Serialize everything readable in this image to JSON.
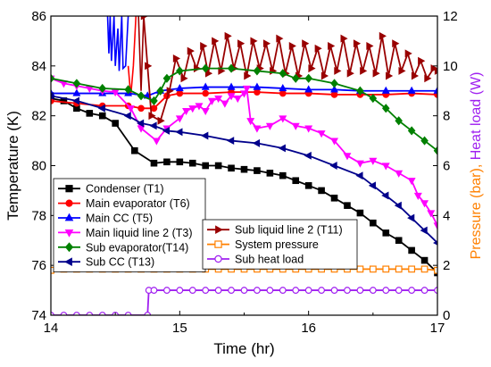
{
  "chart_data": {
    "type": "line",
    "xlabel": "Time (hr)",
    "ylabel_left": "Temperature (K)",
    "ylabel_right_part1": "Pressure (bar),",
    "ylabel_right_part2": "Heat load (W)",
    "xlim": [
      14,
      17
    ],
    "ylim_left": [
      74,
      86
    ],
    "ylim_right": [
      0,
      12
    ],
    "x_ticks": [
      14,
      15,
      16,
      17
    ],
    "x_tick_labels": [
      "14",
      "15",
      "16",
      "17"
    ],
    "y_left_ticks": [
      74,
      76,
      78,
      80,
      82,
      84,
      86
    ],
    "y_left_tick_labels": [
      "74",
      "76",
      "78",
      "80",
      "82",
      "84",
      "86"
    ],
    "y_right_ticks": [
      0,
      2,
      4,
      6,
      8,
      10,
      12
    ],
    "y_right_tick_labels": [
      "0",
      "2",
      "4",
      "6",
      "8",
      "10",
      "12"
    ],
    "grid": false,
    "legend_placement": "bottom-center",
    "colors": {
      "right_axis_pressure": "#ff8000",
      "right_axis_heat": "#a020f0"
    },
    "series": [
      {
        "key": "t1",
        "name": "Condenser (T1)",
        "axis": "left",
        "color": "#000000",
        "marker": "square",
        "filled": true,
        "x": [
          14.0,
          14.1,
          14.2,
          14.3,
          14.4,
          14.5,
          14.65,
          14.8,
          14.9,
          15.0,
          15.1,
          15.2,
          15.3,
          15.4,
          15.5,
          15.6,
          15.7,
          15.8,
          15.9,
          16.0,
          16.1,
          16.2,
          16.3,
          16.4,
          16.5,
          16.6,
          16.7,
          16.8,
          16.9,
          17.0
        ],
        "y": [
          82.7,
          82.6,
          82.3,
          82.1,
          82.0,
          81.7,
          80.6,
          80.1,
          80.15,
          80.15,
          80.1,
          80.0,
          80.0,
          79.9,
          79.85,
          79.8,
          79.7,
          79.6,
          79.4,
          79.2,
          79.0,
          78.7,
          78.4,
          78.1,
          77.7,
          77.3,
          77.0,
          76.6,
          76.2,
          75.7
        ]
      },
      {
        "key": "t6",
        "name": "Main evaporator (T6)",
        "axis": "left",
        "color": "#ff0000",
        "marker": "circle",
        "filled": true,
        "x": [
          14.0,
          14.2,
          14.4,
          14.6,
          14.7,
          14.8,
          14.9,
          15.0,
          15.2,
          15.4,
          15.6,
          15.8,
          16.0,
          16.2,
          16.4,
          16.6,
          16.8,
          17.0
        ],
        "y": [
          82.6,
          82.5,
          82.4,
          82.4,
          82.3,
          82.3,
          82.8,
          82.9,
          82.9,
          82.95,
          82.95,
          82.9,
          82.9,
          82.85,
          82.85,
          82.85,
          82.9,
          82.85
        ]
      },
      {
        "key": "t5",
        "name": "Main CC (T5)",
        "axis": "left",
        "color": "#0000ff",
        "marker": "triangle-up",
        "filled": true,
        "x": [
          14.0,
          14.2,
          14.4,
          14.6,
          14.75,
          14.85,
          15.0,
          15.2,
          15.4,
          15.6,
          15.8,
          16.0,
          16.2,
          16.4,
          16.6,
          16.8,
          17.0
        ],
        "y": [
          82.9,
          82.9,
          82.9,
          82.9,
          82.8,
          83.0,
          83.1,
          83.15,
          83.15,
          83.15,
          83.1,
          83.05,
          83.05,
          83.0,
          83.0,
          83.0,
          83.0
        ]
      },
      {
        "key": "t3",
        "name": "Main liquid line 2 (T3)",
        "axis": "left",
        "color": "#ff00ff",
        "marker": "triangle-down",
        "filled": true,
        "x": [
          14.0,
          14.1,
          14.2,
          14.3,
          14.4,
          14.5,
          14.62,
          14.7,
          14.82,
          14.9,
          15.0,
          15.05,
          15.1,
          15.15,
          15.2,
          15.25,
          15.3,
          15.35,
          15.4,
          15.45,
          15.5,
          15.52,
          15.55,
          15.6,
          15.7,
          15.8,
          15.9,
          16.0,
          16.1,
          16.2,
          16.3,
          16.4,
          16.5,
          16.6,
          16.7,
          16.8,
          16.85,
          16.9,
          16.95,
          17.0
        ],
        "y": [
          83.5,
          83.3,
          83.2,
          83.1,
          83.0,
          82.95,
          82.3,
          81.5,
          81.0,
          81.5,
          81.9,
          82.2,
          82.3,
          82.4,
          82.2,
          82.6,
          82.7,
          82.5,
          82.8,
          82.7,
          82.9,
          83.1,
          81.8,
          81.5,
          81.6,
          81.9,
          81.6,
          81.5,
          81.3,
          81.0,
          80.4,
          80.1,
          80.2,
          80.0,
          79.7,
          79.4,
          78.8,
          78.5,
          78.1,
          77.6
        ]
      },
      {
        "key": "t11",
        "name": "Sub liquid line 2 (T11)",
        "axis": "left",
        "color": "#990000",
        "marker": "triangle-right",
        "filled": true,
        "x": [
          14.72,
          14.75,
          14.78,
          14.85,
          14.92,
          14.97,
          15.03,
          15.08,
          15.13,
          15.18,
          15.22,
          15.27,
          15.32,
          15.37,
          15.42,
          15.47,
          15.52,
          15.57,
          15.62,
          15.67,
          15.72,
          15.77,
          15.82,
          15.87,
          15.92,
          15.97,
          16.02,
          16.07,
          16.12,
          16.17,
          16.22,
          16.27,
          16.32,
          16.37,
          16.42,
          16.47,
          16.52,
          16.57,
          16.62,
          16.67,
          16.72,
          16.77,
          16.82,
          16.87,
          16.92,
          16.97,
          17.0
        ],
        "y": [
          86.0,
          84.0,
          82.0,
          81.8,
          83.0,
          84.3,
          83.5,
          84.6,
          83.9,
          84.8,
          83.7,
          85.0,
          83.8,
          85.2,
          83.9,
          84.9,
          83.6,
          85.0,
          83.9,
          84.9,
          83.8,
          85.1,
          83.7,
          84.8,
          83.6,
          84.9,
          83.9,
          84.7,
          83.6,
          84.8,
          83.8,
          85.1,
          83.7,
          84.9,
          83.8,
          84.8,
          83.7,
          85.2,
          83.6,
          84.9,
          83.8,
          84.5,
          83.6,
          84.2,
          83.5,
          83.9,
          83.8
        ]
      },
      {
        "key": "t14",
        "name": "Sub evaporator(T14)",
        "axis": "left",
        "color": "#008000",
        "marker": "diamond",
        "filled": true,
        "x": [
          14.0,
          14.2,
          14.4,
          14.6,
          14.7,
          14.8,
          14.85,
          14.9,
          15.0,
          15.2,
          15.4,
          15.6,
          15.8,
          15.9,
          16.0,
          16.2,
          16.4,
          16.5,
          16.6,
          16.7,
          16.8,
          16.9,
          17.0
        ],
        "y": [
          83.5,
          83.3,
          83.1,
          83.05,
          82.8,
          82.6,
          83.0,
          83.5,
          83.8,
          83.9,
          83.9,
          83.8,
          83.7,
          83.5,
          83.5,
          83.3,
          83.0,
          82.7,
          82.3,
          81.8,
          81.4,
          81.0,
          80.6
        ]
      },
      {
        "key": "t13",
        "name": "Sub CC (T13)",
        "axis": "left",
        "color": "#00008b",
        "marker": "triangle-left",
        "filled": true,
        "x": [
          14.0,
          14.2,
          14.4,
          14.6,
          14.7,
          14.8,
          14.9,
          15.0,
          15.2,
          15.4,
          15.6,
          15.8,
          16.0,
          16.2,
          16.4,
          16.5,
          16.6,
          16.7,
          16.8,
          16.9,
          17.0
        ],
        "y": [
          82.8,
          82.6,
          82.3,
          82.0,
          81.7,
          81.6,
          81.4,
          81.35,
          81.2,
          81.0,
          80.9,
          80.7,
          80.4,
          80.0,
          79.6,
          79.2,
          78.8,
          78.4,
          77.9,
          77.4,
          76.9
        ]
      },
      {
        "key": "pressure",
        "name": "System pressure",
        "axis": "right",
        "color": "#ff8000",
        "marker": "square",
        "filled": false,
        "x": [
          14.0,
          14.1,
          14.2,
          14.3,
          14.4,
          14.5,
          14.6,
          14.7,
          14.8,
          14.9,
          15.0,
          15.1,
          15.2,
          15.3,
          15.4,
          15.5,
          15.6,
          15.7,
          15.8,
          15.9,
          16.0,
          16.1,
          16.2,
          16.3,
          16.4,
          16.5,
          16.6,
          16.7,
          16.8,
          16.9,
          17.0
        ],
        "y": [
          1.8,
          1.85,
          1.85,
          1.85,
          1.85,
          1.85,
          1.85,
          1.85,
          1.85,
          1.85,
          1.85,
          1.85,
          1.85,
          1.85,
          1.85,
          1.85,
          1.85,
          1.85,
          1.85,
          1.85,
          1.85,
          1.85,
          1.85,
          1.85,
          1.85,
          1.85,
          1.85,
          1.85,
          1.85,
          1.85,
          1.8
        ]
      },
      {
        "key": "heat",
        "name": "Sub heat load",
        "axis": "right",
        "color": "#a020f0",
        "marker": "circle",
        "filled": false,
        "x": [
          14.0,
          14.1,
          14.2,
          14.3,
          14.4,
          14.5,
          14.6,
          14.75,
          14.76,
          14.8,
          14.9,
          15.0,
          15.1,
          15.2,
          15.3,
          15.4,
          15.5,
          15.6,
          15.7,
          15.8,
          15.9,
          16.0,
          16.1,
          16.2,
          16.3,
          16.4,
          16.5,
          16.6,
          16.7,
          16.8,
          16.9,
          17.0
        ],
        "y": [
          0,
          0,
          0,
          0,
          0,
          0,
          0,
          0,
          1.0,
          1.0,
          1.0,
          1.0,
          1.0,
          1.0,
          1.0,
          1.0,
          1.0,
          1.0,
          1.0,
          1.0,
          1.0,
          1.0,
          1.0,
          1.0,
          1.0,
          1.0,
          1.0,
          1.0,
          1.0,
          1.0,
          1.0,
          1.0
        ]
      }
    ],
    "spikes": [
      {
        "series": "t5",
        "color": "#0000ff",
        "x": [
          14.44,
          14.45,
          14.46,
          14.47,
          14.49,
          14.5,
          14.52,
          14.53,
          14.55,
          14.56,
          14.58,
          14.6
        ],
        "y": [
          86.0,
          84.5,
          86.0,
          84.2,
          86.0,
          84.0,
          85.5,
          83.8,
          86.0,
          83.9,
          84.0,
          86.0
        ]
      },
      {
        "series": "t6",
        "color": "#ff0000",
        "x": [
          14.6,
          14.62,
          14.64,
          14.66
        ],
        "y": [
          84.0,
          82.8,
          84.0,
          86.0
        ]
      },
      {
        "series": "t11",
        "color": "#990000",
        "x": [
          14.68,
          14.7,
          14.72
        ],
        "y": [
          86.0,
          83.0,
          86.0
        ]
      }
    ],
    "legend": {
      "box1": [
        "t1",
        "t6",
        "t5",
        "t3",
        "t14",
        "t13"
      ],
      "box2": [
        "t11",
        "pressure",
        "heat"
      ]
    }
  }
}
